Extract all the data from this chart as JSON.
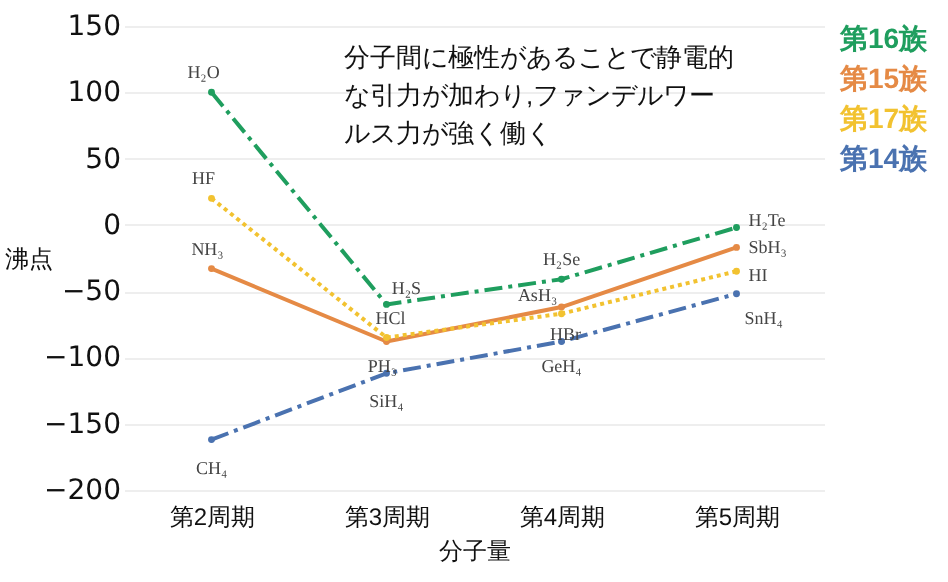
{
  "chart_data": {
    "type": "line",
    "xlabel": "分子量",
    "ylabel": "沸点",
    "categories": [
      "第2周期",
      "第3周期",
      "第4周期",
      "第5周期"
    ],
    "series": [
      {
        "name": "第16族",
        "color": "#1f9e5e",
        "line_style": "dashed",
        "values": [
          100,
          -60,
          -41,
          -2
        ]
      },
      {
        "name": "第15族",
        "color": "#e58a45",
        "line_style": "solid",
        "values": [
          -33,
          -88,
          -62,
          -17
        ]
      },
      {
        "name": "第17族",
        "color": "#f2c230",
        "line_style": "dotted",
        "values": [
          20,
          -85,
          -67,
          -35
        ]
      },
      {
        "name": "第14族",
        "color": "#4a72b0",
        "line_style": "dashed",
        "values": [
          -162,
          -112,
          -88,
          -52
        ]
      }
    ],
    "ylim": [
      -200,
      150
    ],
    "yticks": [
      -200,
      -150,
      -100,
      -50,
      0,
      50,
      100,
      150
    ],
    "grid": "y",
    "legend": "right",
    "marker": "circle",
    "annotations": [
      "分子間に極性があることで静電的な引力が加わり,ファンデルワールス力が強く働く",
      {
        "text": "H₂O",
        "x": "第2周期",
        "y": 100
      },
      {
        "text": "HF",
        "x": "第2周期",
        "y": 20
      },
      {
        "text": "NH₃",
        "x": "第2周期",
        "y": -33
      },
      {
        "text": "CH₄",
        "x": "第2周期",
        "y": -162
      },
      {
        "text": "H₂S",
        "x": "第3周期",
        "y": -60
      },
      {
        "text": "HCl",
        "x": "第3周期",
        "y": -85
      },
      {
        "text": "PH₃",
        "x": "第3周期",
        "y": -88
      },
      {
        "text": "SiH₄",
        "x": "第3周期",
        "y": -112
      },
      {
        "text": "H₂Se",
        "x": "第4周期",
        "y": -41
      },
      {
        "text": "AsH₃",
        "x": "第4周期",
        "y": -62
      },
      {
        "text": "HBr",
        "x": "第4周期",
        "y": -67
      },
      {
        "text": "GeH₄",
        "x": "第4周期",
        "y": -88
      },
      {
        "text": "H₂Te",
        "x": "第5周期",
        "y": -2
      },
      {
        "text": "SbH₃",
        "x": "第5周期",
        "y": -17
      },
      {
        "text": "HI",
        "x": "第5周期",
        "y": -35
      },
      {
        "text": "SnH₄",
        "x": "第5周期",
        "y": -52
      }
    ]
  }
}
